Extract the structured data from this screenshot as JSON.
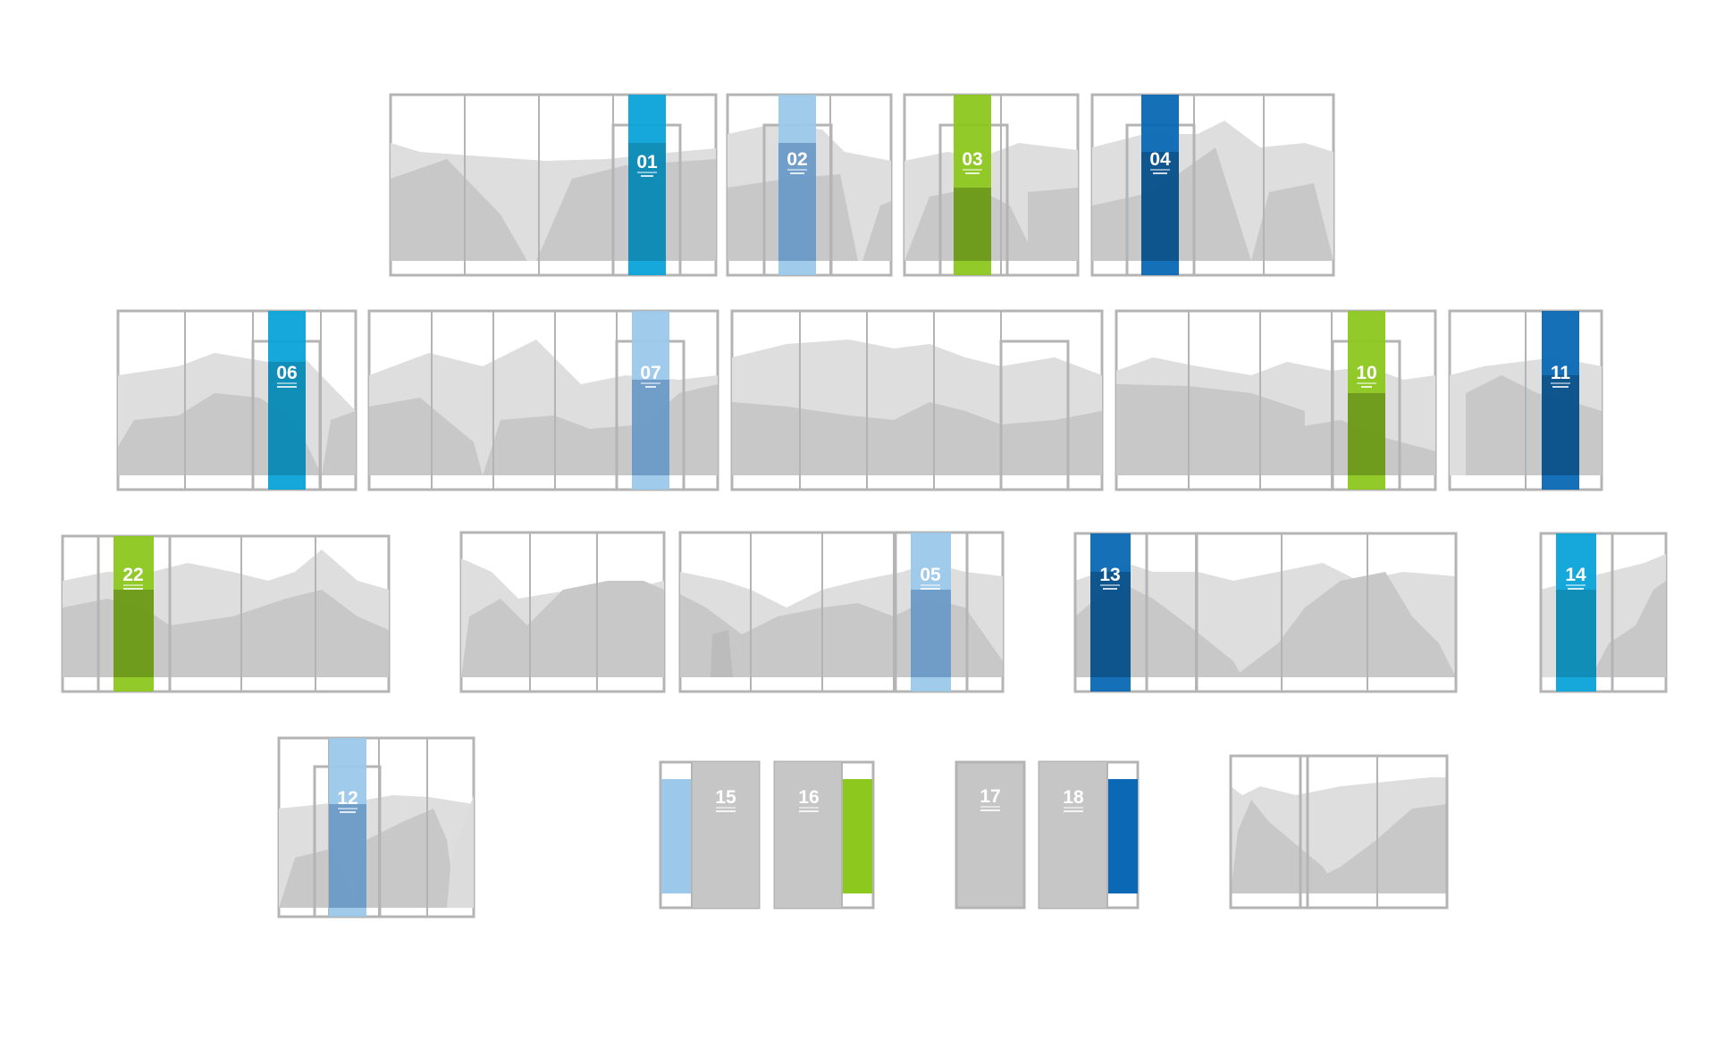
{
  "colors": {
    "cyan": "#0aa3d8",
    "light-blue": "#9cc8ea",
    "green": "#8cc81e",
    "dark-blue": "#0a68b4",
    "frame": "#b4b4b4",
    "mountain-light": "#dedede",
    "mountain-dark": "#c8c8c8",
    "door-fill": "#c6c6c6"
  },
  "panels": [
    {
      "id": "01",
      "label": "01",
      "color": "cyan"
    },
    {
      "id": "02",
      "label": "02",
      "color": "light-blue"
    },
    {
      "id": "03",
      "label": "03",
      "color": "green"
    },
    {
      "id": "04",
      "label": "04",
      "color": "dark-blue"
    },
    {
      "id": "06",
      "label": "06",
      "color": "cyan"
    },
    {
      "id": "07",
      "label": "07",
      "color": "light-blue"
    },
    {
      "id": "unlabeled-a",
      "label": "",
      "color": ""
    },
    {
      "id": "10",
      "label": "10",
      "color": "green"
    },
    {
      "id": "11",
      "label": "11",
      "color": "dark-blue"
    },
    {
      "id": "22",
      "label": "22",
      "color": "green"
    },
    {
      "id": "05",
      "label": "05",
      "color": "light-blue"
    },
    {
      "id": "13",
      "label": "13",
      "color": "dark-blue"
    },
    {
      "id": "14",
      "label": "14",
      "color": "cyan"
    },
    {
      "id": "12",
      "label": "12",
      "color": "light-blue"
    },
    {
      "id": "15",
      "label": "15",
      "color": "light-blue"
    },
    {
      "id": "16",
      "label": "16",
      "color": "green"
    },
    {
      "id": "17",
      "label": "17",
      "color": ""
    },
    {
      "id": "18",
      "label": "18",
      "color": "dark-blue"
    },
    {
      "id": "unlabeled-b",
      "label": "",
      "color": ""
    }
  ]
}
